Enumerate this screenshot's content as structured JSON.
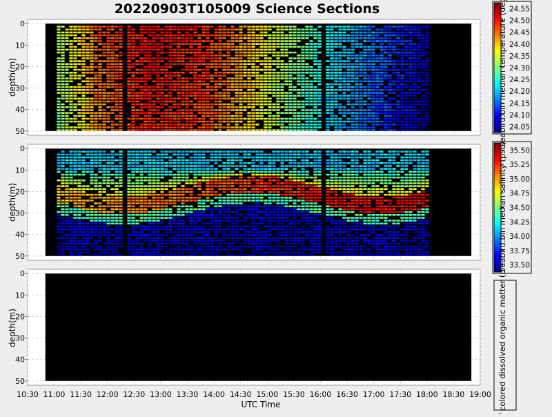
{
  "chart_data": [
    {
      "type": "heatmap",
      "title": "20220903T105009 Science Sections",
      "xlabel": "",
      "ylabel": "depth(m)",
      "y_ticks": [
        0,
        10,
        20,
        30,
        40,
        50
      ],
      "ylim": [
        52,
        -2
      ],
      "grid": true,
      "colorbar": {
        "label": "seabird.bin median temperature (degC)",
        "ticks": [
          "24.55",
          "24.50",
          "24.45",
          "24.40",
          "24.35",
          "24.30",
          "24.25",
          "24.20",
          "24.15",
          "24.10",
          "24.05"
        ],
        "range": [
          24.02,
          24.56
        ]
      }
    },
    {
      "type": "heatmap",
      "xlabel": "",
      "ylabel": "depth(m)",
      "y_ticks": [
        0,
        10,
        20,
        30,
        40,
        50
      ],
      "ylim": [
        52,
        -2
      ],
      "grid": true,
      "colorbar": {
        "label": "Seabird.bin median salinity (psu)",
        "ticks": [
          "35.50",
          "35.25",
          "35.00",
          "34.75",
          "34.50",
          "34.25",
          "34.00",
          "33.75",
          "33.50"
        ],
        "range": [
          33.5,
          35.75
        ]
      }
    },
    {
      "type": "heatmap",
      "xlabel": "UTC Time",
      "ylabel": "depth(m)",
      "y_ticks": [
        0,
        10,
        20,
        30,
        40,
        50
      ],
      "ylim": [
        52,
        -2
      ],
      "grid": true,
      "colorbar": {
        "label": "of colored dissolved organic matter (p",
        "ticks": [],
        "range": null
      }
    }
  ],
  "x_axis": {
    "label": "UTC Time",
    "ticks": [
      "10:30",
      "11:00",
      "11:30",
      "12:00",
      "12:30",
      "13:00",
      "13:30",
      "14:00",
      "14:30",
      "15:00",
      "15:30",
      "16:00",
      "16:30",
      "17:00",
      "17:30",
      "18:00",
      "18:30",
      "19:00"
    ],
    "xlim": [
      "10:30",
      "19:00"
    ],
    "data_extent": [
      "10:50",
      "18:50"
    ],
    "profiles_extent": [
      "11:03",
      "18:00"
    ]
  },
  "colors": {
    "background": "#eeeeee",
    "plot_fill": "#000000",
    "grid": "#cccccc",
    "colormap": "jet"
  }
}
